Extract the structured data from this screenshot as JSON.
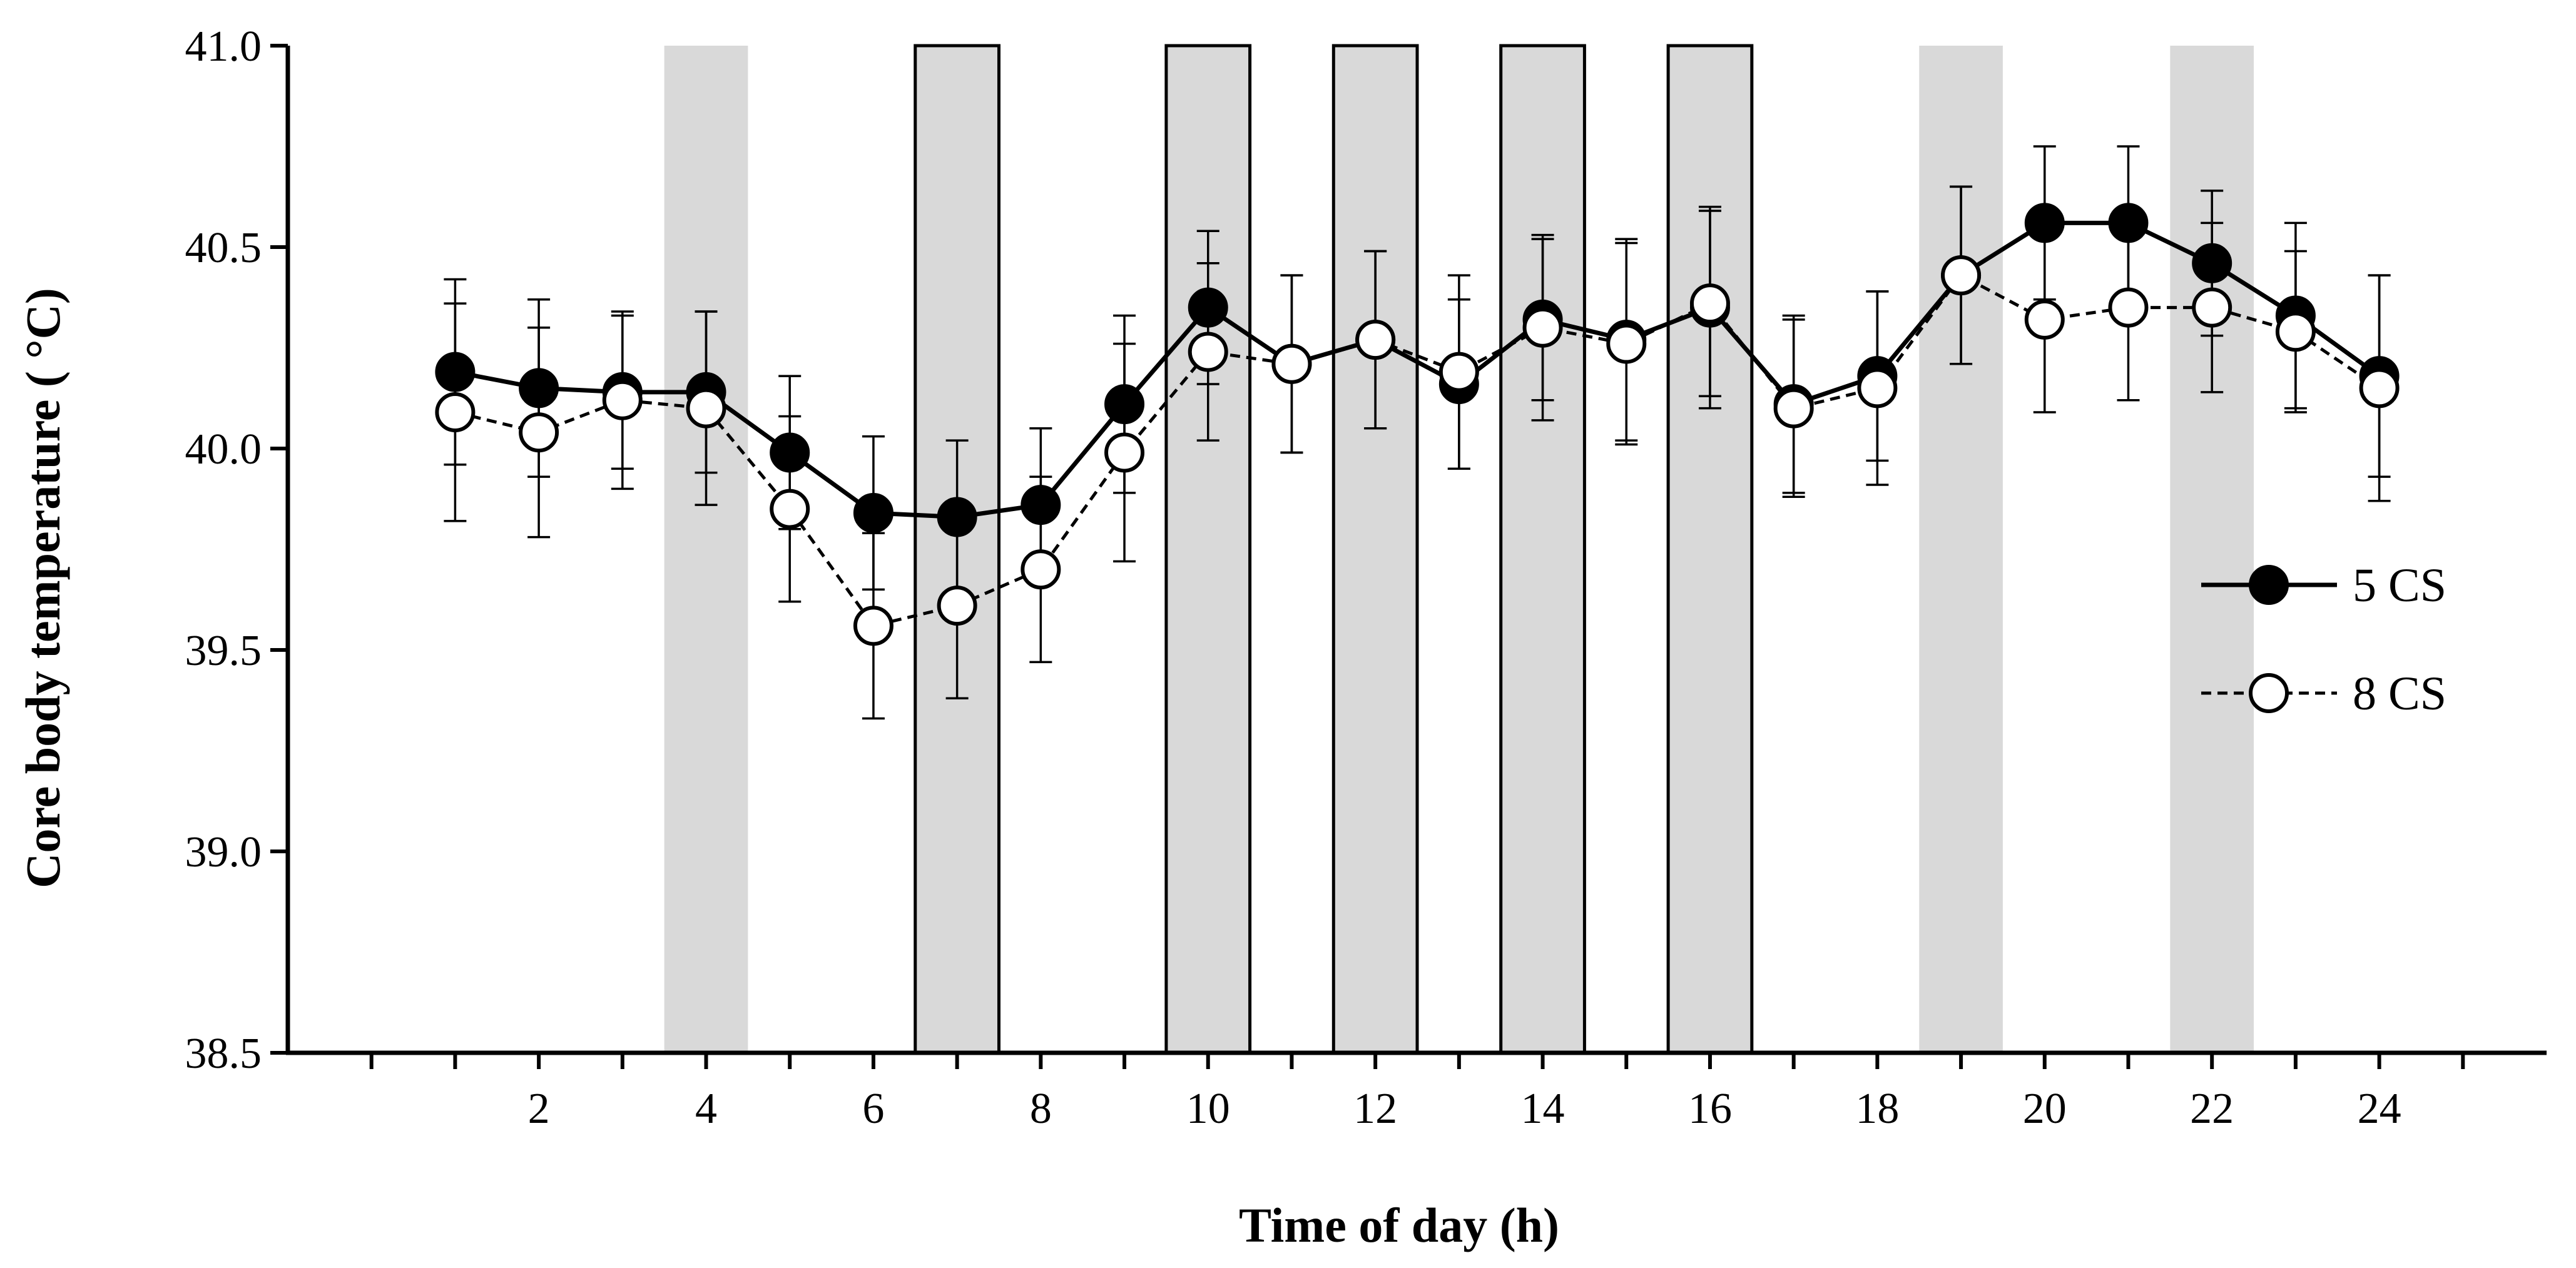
{
  "chart_data": {
    "type": "line",
    "title": "",
    "xlabel": "Time of day (h)",
    "ylabel": "Core body temperature ( °C)",
    "xlim": [
      -1,
      26
    ],
    "ylim": [
      38.5,
      41.0
    ],
    "x_ticks": [
      2,
      4,
      6,
      8,
      10,
      12,
      14,
      16,
      18,
      20,
      22,
      24
    ],
    "y_ticks": [
      "38.5",
      "39.0",
      "39.5",
      "40.0",
      "40.5",
      "41.0"
    ],
    "grid": false,
    "legend_position": "right",
    "x": [
      1,
      2,
      3,
      4,
      5,
      6,
      7,
      8,
      9,
      10,
      11,
      12,
      13,
      14,
      15,
      16,
      17,
      18,
      19,
      20,
      21,
      22,
      23,
      24
    ],
    "series": [
      {
        "name": "5 CS",
        "marker": "filled-circle",
        "line": "solid",
        "values": [
          40.19,
          40.15,
          40.14,
          40.14,
          39.99,
          39.84,
          39.83,
          39.86,
          40.11,
          40.35,
          40.21,
          40.27,
          40.16,
          40.32,
          40.27,
          40.35,
          40.11,
          40.18,
          40.43,
          40.56,
          40.56,
          40.46,
          40.33,
          40.18
        ],
        "errors": [
          0.23,
          0.22,
          0.19,
          0.2,
          0.19,
          0.19,
          0.19,
          0.19,
          0.22,
          0.19,
          0.22,
          0.22,
          0.21,
          0.2,
          0.25,
          0.25,
          0.22,
          0.21,
          0.22,
          0.19,
          0.19,
          0.18,
          0.23,
          0.25
        ]
      },
      {
        "name": "8 CS",
        "marker": "open-circle",
        "line": "dashed",
        "values": [
          40.09,
          40.04,
          40.12,
          40.1,
          39.85,
          39.56,
          39.61,
          39.7,
          39.99,
          40.24,
          40.21,
          40.27,
          40.19,
          40.3,
          40.26,
          40.36,
          40.1,
          40.15,
          40.43,
          40.32,
          40.35,
          40.35,
          40.29,
          40.15
        ],
        "errors": [
          0.27,
          0.26,
          0.22,
          0.24,
          0.23,
          0.23,
          0.23,
          0.23,
          0.27,
          0.22,
          0.22,
          0.22,
          0.24,
          0.23,
          0.25,
          0.23,
          0.22,
          0.24,
          0.22,
          0.23,
          0.23,
          0.21,
          0.2,
          0.28
        ]
      }
    ],
    "shaded_regions": [
      {
        "start": 3.5,
        "end": 4.5,
        "outlined": false
      },
      {
        "start": 6.5,
        "end": 7.5,
        "outlined": true
      },
      {
        "start": 9.5,
        "end": 10.5,
        "outlined": true
      },
      {
        "start": 11.5,
        "end": 12.5,
        "outlined": true
      },
      {
        "start": 13.5,
        "end": 14.5,
        "outlined": true
      },
      {
        "start": 15.5,
        "end": 16.5,
        "outlined": true
      },
      {
        "start": 18.5,
        "end": 19.5,
        "outlined": false
      },
      {
        "start": 21.5,
        "end": 22.5,
        "outlined": false
      }
    ],
    "colors": {
      "shade": "#d9d9d9",
      "line": "#000000",
      "open_marker_fill": "#ffffff"
    }
  }
}
